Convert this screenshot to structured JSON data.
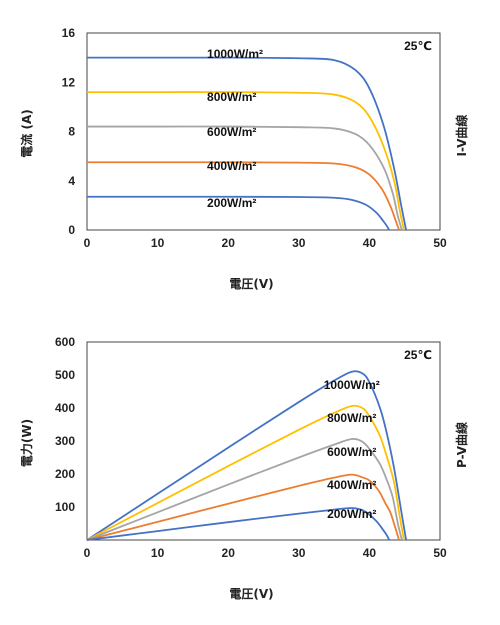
{
  "chart_data": [
    {
      "type": "line",
      "annotation": "25℃",
      "xlabel": "電圧(V)",
      "ylabel": "電流 (A)",
      "right_label": "I-V曲線",
      "xlim": [
        0,
        50
      ],
      "ylim": [
        0,
        16
      ],
      "xticks": [
        "0",
        "10",
        "20",
        "30",
        "40",
        "50"
      ],
      "yticks": [
        "0",
        "4",
        "8",
        "12",
        "16"
      ],
      "grid": false,
      "series": [
        {
          "name": "1000W/m²",
          "color": "#4472C4",
          "isc": 14.0,
          "voc": 45.2,
          "points": [
            [
              0,
              14.0
            ],
            [
              10,
              14.0
            ],
            [
              20,
              14.0
            ],
            [
              30,
              13.95
            ],
            [
              35,
              13.8
            ],
            [
              38,
              13.0
            ],
            [
              40,
              11.5
            ],
            [
              42,
              8.5
            ],
            [
              43.5,
              5.0
            ],
            [
              44.5,
              2.0
            ],
            [
              45.2,
              0
            ]
          ]
        },
        {
          "name": "800W/m²",
          "color": "#FFC000",
          "isc": 11.2,
          "voc": 44.9,
          "points": [
            [
              0,
              11.2
            ],
            [
              10,
              11.2
            ],
            [
              20,
              11.2
            ],
            [
              30,
              11.15
            ],
            [
              35,
              11.0
            ],
            [
              38,
              10.4
            ],
            [
              40,
              9.2
            ],
            [
              42,
              6.8
            ],
            [
              43.5,
              4.0
            ],
            [
              44.3,
              1.6
            ],
            [
              44.9,
              0
            ]
          ]
        },
        {
          "name": "600W/m²",
          "color": "#A5A5A5",
          "isc": 8.4,
          "voc": 44.6,
          "points": [
            [
              0,
              8.4
            ],
            [
              10,
              8.4
            ],
            [
              20,
              8.4
            ],
            [
              30,
              8.35
            ],
            [
              35,
              8.25
            ],
            [
              38,
              7.8
            ],
            [
              40,
              6.9
            ],
            [
              42,
              5.1
            ],
            [
              43.3,
              3.0
            ],
            [
              44.0,
              1.2
            ],
            [
              44.6,
              0
            ]
          ]
        },
        {
          "name": "400W/m²",
          "color": "#ED7D31",
          "isc": 5.5,
          "voc": 44.2,
          "points": [
            [
              0,
              5.5
            ],
            [
              10,
              5.5
            ],
            [
              20,
              5.5
            ],
            [
              30,
              5.47
            ],
            [
              35,
              5.4
            ],
            [
              38,
              5.1
            ],
            [
              40,
              4.5
            ],
            [
              41.8,
              3.3
            ],
            [
              43.0,
              1.9
            ],
            [
              43.7,
              0.8
            ],
            [
              44.2,
              0
            ]
          ]
        },
        {
          "name": "200W/m²",
          "color": "#4472C4",
          "isc": 2.7,
          "voc": 42.8,
          "points": [
            [
              0,
              2.7
            ],
            [
              10,
              2.7
            ],
            [
              20,
              2.7
            ],
            [
              30,
              2.68
            ],
            [
              35,
              2.62
            ],
            [
              37.5,
              2.45
            ],
            [
              39.5,
              2.05
            ],
            [
              41,
              1.4
            ],
            [
              42,
              0.7
            ],
            [
              42.5,
              0.3
            ],
            [
              42.8,
              0
            ]
          ]
        }
      ]
    },
    {
      "type": "line",
      "annotation": "25℃",
      "xlabel": "電圧(V)",
      "ylabel": "電力(W)",
      "right_label": "P-V曲線",
      "xlim": [
        0,
        50
      ],
      "ylim": [
        0,
        600
      ],
      "xticks": [
        "0",
        "10",
        "20",
        "30",
        "40",
        "50"
      ],
      "yticks": [
        "100",
        "200",
        "300",
        "400",
        "500",
        "600"
      ],
      "grid": false,
      "series": [
        {
          "name": "1000W/m²",
          "color": "#4472C4",
          "points": [
            [
              0,
              0
            ],
            [
              10,
              140
            ],
            [
              20,
              280
            ],
            [
              30,
              418
            ],
            [
              35,
              483
            ],
            [
              37.5,
              510
            ],
            [
              39,
              505
            ],
            [
              40,
              478
            ],
            [
              41.5,
              400
            ],
            [
              42.5,
              320
            ],
            [
              43.5,
              217
            ],
            [
              44.5,
              89
            ],
            [
              45.2,
              0
            ]
          ]
        },
        {
          "name": "800W/m²",
          "color": "#FFC000",
          "points": [
            [
              0,
              0
            ],
            [
              10,
              112
            ],
            [
              20,
              224
            ],
            [
              30,
              334
            ],
            [
              35,
              385
            ],
            [
              37.5,
              406
            ],
            [
              39,
              400
            ],
            [
              40,
              375
            ],
            [
              41.5,
              315
            ],
            [
              42.5,
              250
            ],
            [
              43.5,
              174
            ],
            [
              44.3,
              71
            ],
            [
              44.9,
              0
            ]
          ]
        },
        {
          "name": "600W/m²",
          "color": "#A5A5A5",
          "points": [
            [
              0,
              0
            ],
            [
              10,
              84
            ],
            [
              20,
              168
            ],
            [
              30,
              250
            ],
            [
              35,
              289
            ],
            [
              37.5,
              306
            ],
            [
              39,
              298
            ],
            [
              40,
              276
            ],
            [
              41.5,
              230
            ],
            [
              42.5,
              180
            ],
            [
              43.3,
              130
            ],
            [
              44.0,
              53
            ],
            [
              44.6,
              0
            ]
          ]
        },
        {
          "name": "400W/m²",
          "color": "#ED7D31",
          "points": [
            [
              0,
              0
            ],
            [
              10,
              55
            ],
            [
              20,
              110
            ],
            [
              30,
              164
            ],
            [
              35,
              189
            ],
            [
              37.5,
              198
            ],
            [
              39,
              190
            ],
            [
              40,
              180
            ],
            [
              41.3,
              150
            ],
            [
              42.3,
              110
            ],
            [
              43.0,
              82
            ],
            [
              43.7,
              35
            ],
            [
              44.2,
              0
            ]
          ]
        },
        {
          "name": "200W/m²",
          "color": "#4472C4",
          "points": [
            [
              0,
              0
            ],
            [
              10,
              27
            ],
            [
              20,
              54
            ],
            [
              30,
              80
            ],
            [
              35,
              92
            ],
            [
              37.5,
              97
            ],
            [
              38.8,
              92
            ],
            [
              39.8,
              80
            ],
            [
              41,
              57
            ],
            [
              42,
              29
            ],
            [
              42.5,
              13
            ],
            [
              42.8,
              0
            ]
          ]
        }
      ]
    }
  ]
}
